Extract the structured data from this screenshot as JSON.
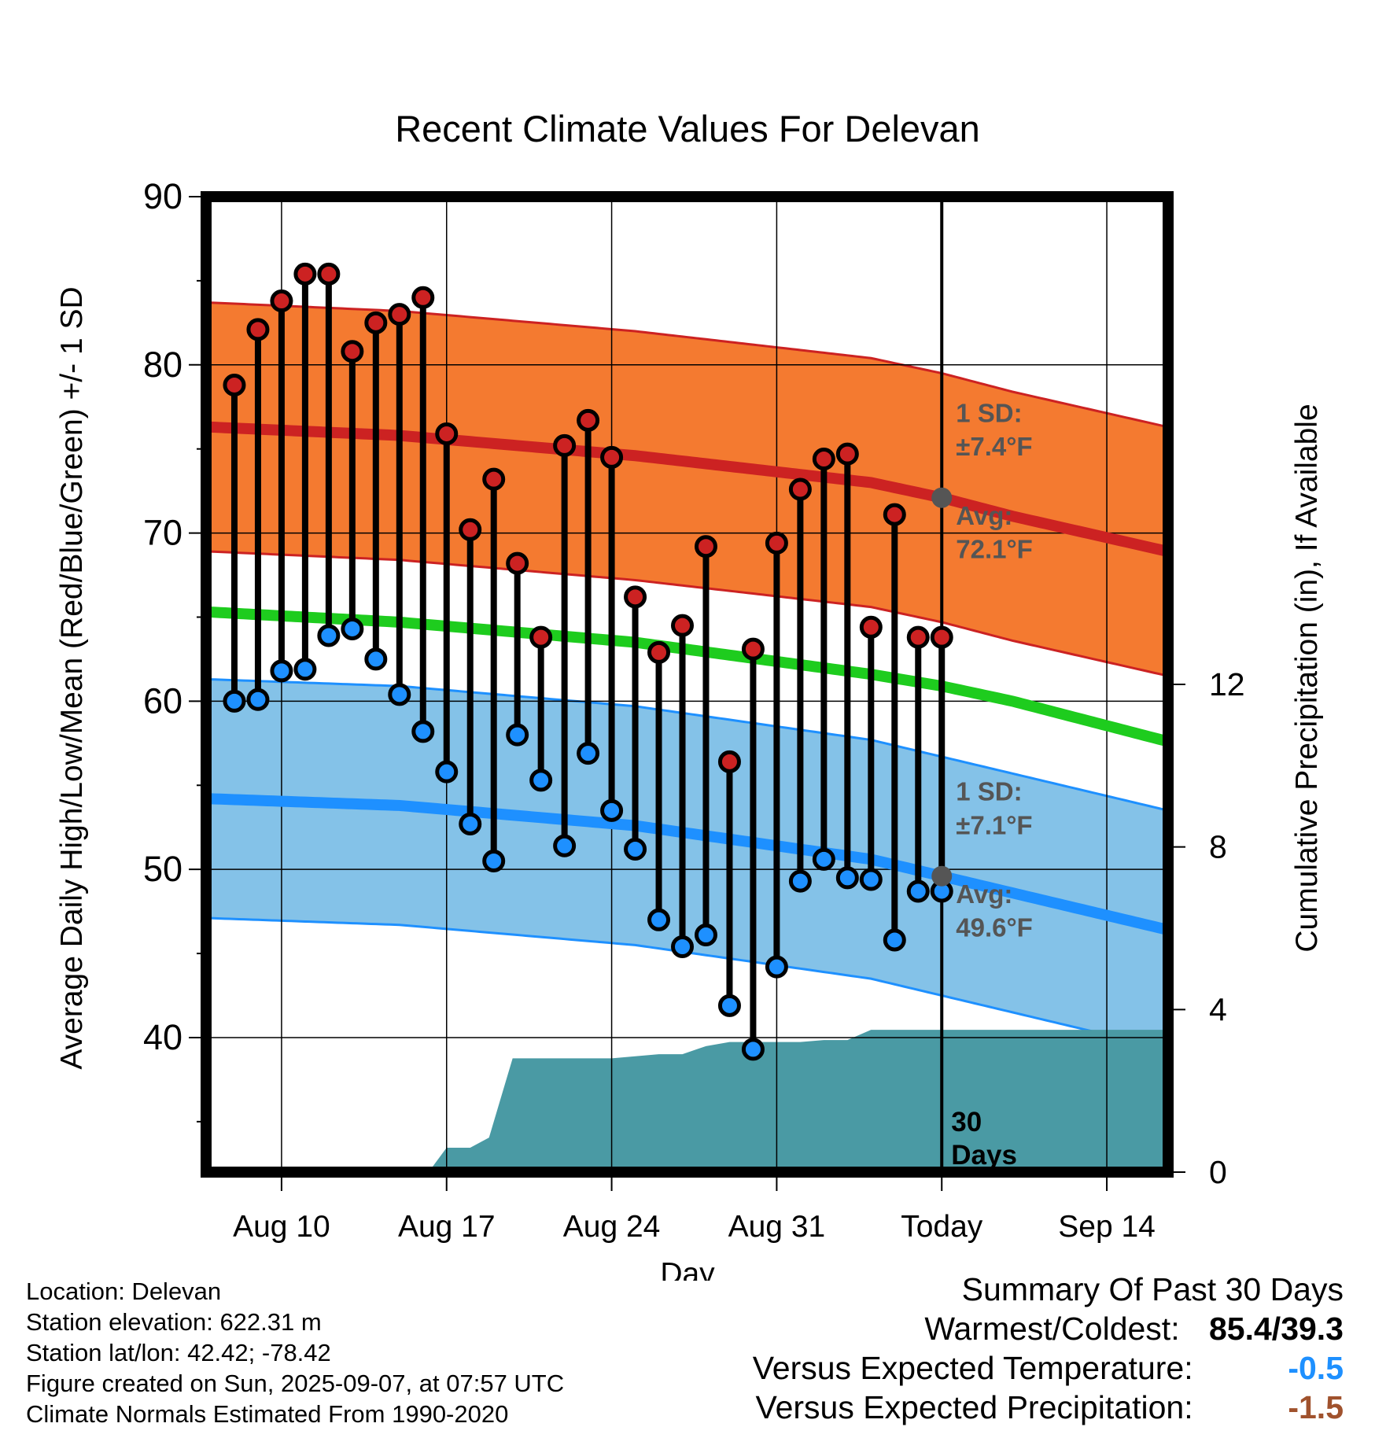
{
  "chart_data": {
    "type": "line",
    "title": "Recent Climate Values For Delevan",
    "xlabel": "Day",
    "ylabel": "Average Daily High/Low/Mean (Red/Blue/Green) +/- 1 SD",
    "y2label": "Cumulative Precipitation (in), If Available",
    "ylim": [
      32,
      90
    ],
    "y2lim": [
      0,
      24
    ],
    "yticks": [
      40,
      50,
      60,
      70,
      80,
      90
    ],
    "y2ticks": [
      0,
      4,
      8,
      12
    ],
    "xticks": [
      {
        "day": 10,
        "label": "Aug 10"
      },
      {
        "day": 17,
        "label": "Aug 17"
      },
      {
        "day": 24,
        "label": "Aug 24"
      },
      {
        "day": 31,
        "label": "Aug 31"
      },
      {
        "day": 38,
        "label": "Today"
      },
      {
        "day": 45,
        "label": "Sep 14"
      }
    ],
    "xlim": [
      6.8,
      47.6
    ],
    "days": [
      "Aug 8",
      "Aug 9",
      "Aug 10",
      "Aug 11",
      "Aug 12",
      "Aug 13",
      "Aug 14",
      "Aug 15",
      "Aug 16",
      "Aug 17",
      "Aug 18",
      "Aug 19",
      "Aug 20",
      "Aug 21",
      "Aug 22",
      "Aug 23",
      "Aug 24",
      "Aug 25",
      "Aug 26",
      "Aug 27",
      "Aug 28",
      "Aug 29",
      "Aug 30",
      "Aug 31",
      "Sep 1",
      "Sep 2",
      "Sep 3",
      "Sep 4",
      "Sep 5",
      "Sep 6",
      "Sep 7"
    ],
    "daily_high": [
      78.8,
      82.1,
      83.8,
      85.4,
      85.4,
      80.8,
      82.5,
      83.0,
      84.0,
      75.9,
      70.2,
      73.2,
      68.2,
      63.8,
      75.2,
      76.7,
      74.5,
      66.2,
      62.9,
      64.5,
      69.2,
      56.4,
      63.1,
      69.4,
      72.6,
      74.4,
      74.7,
      64.4,
      71.1,
      63.8,
      63.8
    ],
    "daily_low": [
      60.0,
      60.1,
      61.8,
      61.9,
      63.9,
      64.3,
      62.5,
      60.4,
      58.2,
      55.8,
      52.7,
      50.5,
      58.0,
      55.3,
      51.4,
      56.9,
      53.5,
      51.2,
      47.0,
      45.4,
      46.1,
      41.9,
      39.3,
      44.2,
      49.3,
      50.6,
      49.5,
      49.4,
      45.8,
      48.7,
      48.7
    ],
    "normal_high_avg": {
      "x": [
        7,
        15,
        25,
        35,
        38,
        41,
        47.6
      ],
      "y": [
        76.3,
        75.8,
        74.6,
        73.0,
        72.1,
        71.0,
        68.9
      ]
    },
    "normal_high_sd": 7.4,
    "normal_low_avg": {
      "x": [
        7,
        15,
        25,
        35,
        38,
        41,
        47.6
      ],
      "y": [
        54.2,
        53.8,
        52.6,
        50.6,
        49.6,
        48.6,
        46.4
      ]
    },
    "normal_low_sd": 7.1,
    "normal_mean": {
      "x": [
        7,
        15,
        25,
        35,
        38,
        41,
        47.6
      ],
      "y": [
        65.3,
        64.7,
        63.5,
        61.6,
        60.9,
        60.0,
        57.6
      ]
    },
    "cumulative_precip": {
      "x": [
        16,
        16.3,
        17,
        18,
        18.8,
        19.8,
        20,
        21,
        22,
        23,
        24,
        25,
        26,
        27,
        28,
        29,
        30,
        31,
        32,
        33,
        34,
        35,
        36,
        37,
        38,
        47.6
      ],
      "y": [
        0,
        0.05,
        0.6,
        0.6,
        0.85,
        2.8,
        2.8,
        2.8,
        2.8,
        2.8,
        2.8,
        2.85,
        2.9,
        2.9,
        3.1,
        3.2,
        3.2,
        3.2,
        3.2,
        3.25,
        3.25,
        3.5,
        3.5,
        3.5,
        3.5,
        3.5
      ]
    },
    "annotations": {
      "high_sd_label": "1 SD:",
      "high_sd_value": "±7.4°F",
      "high_avg_label": "Avg:",
      "high_avg_value": "72.1°F",
      "low_sd_label": "1 SD:",
      "low_sd_value": "±7.1°F",
      "low_avg_label": "Avg:",
      "low_avg_value": "49.6°F",
      "precip_label_1": "30",
      "precip_label_2": "Days"
    },
    "colors": {
      "high_band": "#f47a30",
      "high_line": "#cc2222",
      "low_band": "#84c2e8",
      "low_line": "#1e90ff",
      "mean_line": "#1ecc1e",
      "precip": "#4a9aa4",
      "high_marker": "#cc2222",
      "low_marker": "#1e90ff",
      "avg_marker": "#555555",
      "annotation_text": "#555555"
    },
    "grid": true
  },
  "info": {
    "location": "Location: Delevan",
    "elevation": "Station elevation: 622.31 m",
    "latlon": "Station lat/lon: 42.42; -78.42",
    "created": "Figure created on Sun, 2025-09-07, at 07:57 UTC",
    "normals": "Climate Normals Estimated From 1990-2020"
  },
  "summary": {
    "title": "Summary Of Past 30 Days",
    "warm_cold_label": "Warmest/Coldest:",
    "warm_cold_value": "85.4/39.3",
    "temp_label": "Versus Expected Temperature:",
    "temp_value": "-0.5",
    "temp_color": "#1e90ff",
    "precip_label": "Versus Expected Precipitation:",
    "precip_value": "-1.5",
    "precip_color": "#a0522d"
  }
}
